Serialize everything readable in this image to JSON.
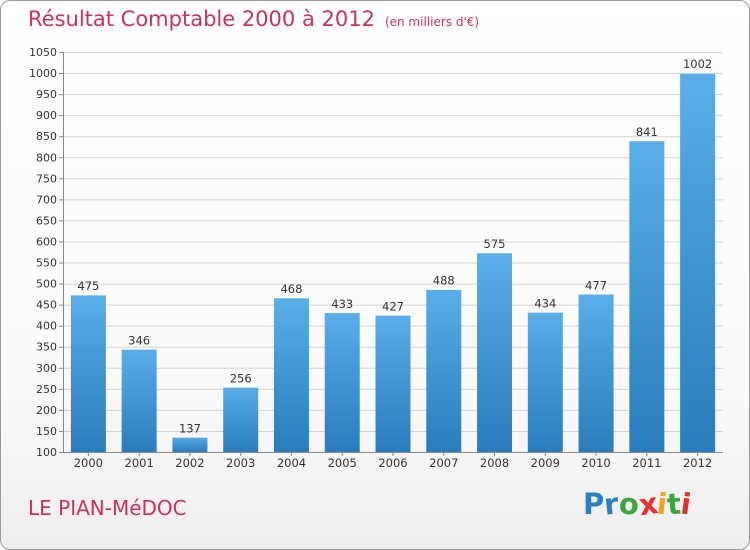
{
  "header": {
    "title": "Résultat Comptable 2000 à 2012",
    "subtitle": "(en milliers d'€)"
  },
  "footer": {
    "commune": "LE PIAN-MéDOC",
    "logo_letters": [
      "P",
      "r",
      "o",
      "x",
      "i",
      "t",
      "i"
    ],
    "logo_colors": [
      "#2c7fc0",
      "#2c7fc0",
      "#3aa63a",
      "#e6302e",
      "#f2a31b",
      "#3aa63a",
      "#e6302e"
    ]
  },
  "colors": {
    "title": "#c8325a",
    "bar_top": "#5aaeea",
    "bar_bottom": "#2a7cbc",
    "grid": "#d4d4d4"
  },
  "chart_data": {
    "type": "bar",
    "title": "Résultat Comptable 2000 à 2012",
    "subtitle": "(en milliers d'€)",
    "xlabel": "",
    "ylabel": "",
    "categories": [
      "2000",
      "2001",
      "2002",
      "2003",
      "2004",
      "2005",
      "2006",
      "2007",
      "2008",
      "2009",
      "2010",
      "2011",
      "2012"
    ],
    "values": [
      475,
      346,
      137,
      256,
      468,
      433,
      427,
      488,
      575,
      434,
      477,
      841,
      1002
    ],
    "ylim": [
      100,
      1050
    ],
    "yticks": [
      100,
      150,
      200,
      250,
      300,
      350,
      400,
      450,
      500,
      550,
      600,
      650,
      700,
      750,
      800,
      850,
      900,
      950,
      1000,
      1050
    ],
    "grid": true
  }
}
